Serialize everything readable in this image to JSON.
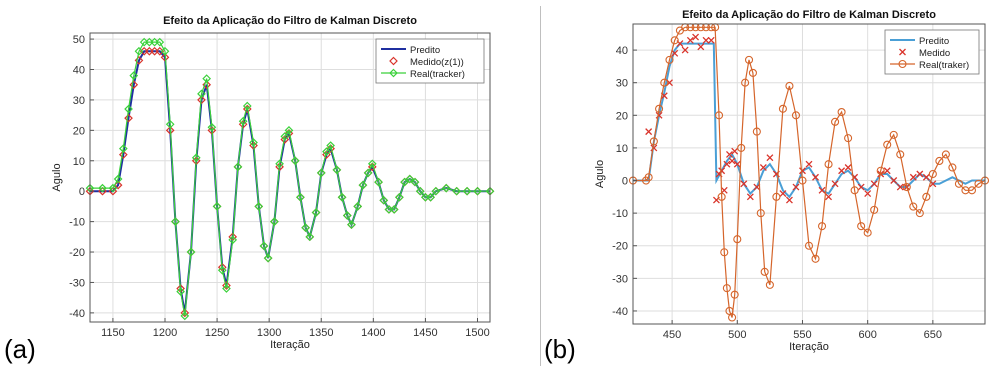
{
  "panels": [
    {
      "letter": "(a)",
      "chart_data": {
        "type": "line",
        "title": "Efeito da Aplicação do Filtro de Kalman Discreto",
        "xlabel": "Iteração",
        "ylabel": "Agulo",
        "xlim": [
          1128,
          1512
        ],
        "ylim": [
          -43,
          52
        ],
        "xticks": [
          1150,
          1200,
          1250,
          1300,
          1350,
          1400,
          1450,
          1500
        ],
        "yticks": [
          -40,
          -30,
          -20,
          -10,
          0,
          10,
          20,
          30,
          40,
          50
        ],
        "grid": true,
        "legend_position": "top-right",
        "series": [
          {
            "name": "Predito",
            "style": "line",
            "color": "#1f2fa0",
            "x": [
              1128,
              1140,
              1150,
              1155,
              1160,
              1165,
              1170,
              1175,
              1180,
              1185,
              1190,
              1195,
              1200,
              1205,
              1210,
              1215,
              1219,
              1225,
              1230,
              1235,
              1240,
              1245,
              1250,
              1255,
              1259,
              1265,
              1270,
              1275,
              1279,
              1285,
              1290,
              1295,
              1299,
              1305,
              1310,
              1315,
              1319,
              1325,
              1330,
              1335,
              1339,
              1345,
              1350,
              1355,
              1359,
              1365,
              1370,
              1375,
              1379,
              1385,
              1390,
              1395,
              1399,
              1405,
              1410,
              1415,
              1420,
              1425,
              1430,
              1435,
              1440,
              1445,
              1450,
              1455,
              1460,
              1470,
              1480,
              1490,
              1500,
              1512
            ],
            "y": [
              0,
              0,
              0,
              2,
              12,
              24,
              35,
              43,
              46,
              46,
              46,
              46,
              44,
              20,
              -10,
              -32,
              -40,
              -20,
              10,
              30,
              35,
              20,
              -5,
              -25,
              -31,
              -15,
              8,
              22,
              27,
              15,
              -5,
              -18,
              -22,
              -10,
              8,
              17,
              19,
              10,
              -2,
              -12,
              -15,
              -7,
              6,
              12,
              14,
              7,
              -2,
              -8,
              -11,
              -5,
              2,
              6,
              8,
              3,
              -3,
              -6,
              -6,
              -2,
              3,
              4,
              3,
              0,
              -2,
              -2,
              0,
              1,
              0,
              0,
              0,
              0
            ]
          },
          {
            "name": "Medido(z(1))",
            "style": "marker",
            "color": "#d9342b",
            "x": [
              1128,
              1140,
              1150,
              1155,
              1160,
              1165,
              1170,
              1175,
              1180,
              1185,
              1190,
              1195,
              1200,
              1205,
              1210,
              1215,
              1219,
              1225,
              1230,
              1235,
              1240,
              1245,
              1250,
              1255,
              1259,
              1265,
              1270,
              1275,
              1279,
              1285,
              1290,
              1295,
              1299,
              1305,
              1310,
              1315,
              1319,
              1325,
              1330,
              1335,
              1339,
              1345,
              1350,
              1355,
              1359,
              1365,
              1370,
              1375,
              1379,
              1385,
              1390,
              1395,
              1399,
              1405,
              1410,
              1415,
              1420,
              1425,
              1430,
              1435,
              1440,
              1445,
              1450,
              1455,
              1460,
              1470,
              1480,
              1490,
              1500,
              1512
            ],
            "y": [
              0,
              0,
              0,
              2,
              12,
              24,
              35,
              43,
              46,
              46,
              46,
              46,
              44,
              20,
              -10,
              -32,
              -40,
              -20,
              10,
              30,
              35,
              20,
              -5,
              -25,
              -31,
              -15,
              8,
              22,
              27,
              15,
              -5,
              -18,
              -22,
              -10,
              8,
              17,
              19,
              10,
              -2,
              -12,
              -15,
              -7,
              6,
              12,
              14,
              7,
              -2,
              -8,
              -11,
              -5,
              2,
              6,
              8,
              3,
              -3,
              -6,
              -6,
              -2,
              3,
              4,
              3,
              0,
              -2,
              -2,
              0,
              1,
              0,
              0,
              0,
              0
            ]
          },
          {
            "name": "Real(tracker)",
            "style": "line+marker",
            "color": "#3ad13a",
            "x": [
              1128,
              1140,
              1150,
              1155,
              1160,
              1165,
              1170,
              1175,
              1180,
              1185,
              1190,
              1195,
              1200,
              1205,
              1210,
              1215,
              1219,
              1225,
              1230,
              1235,
              1240,
              1245,
              1250,
              1255,
              1259,
              1265,
              1270,
              1275,
              1279,
              1285,
              1290,
              1295,
              1299,
              1305,
              1310,
              1315,
              1319,
              1325,
              1330,
              1335,
              1339,
              1345,
              1350,
              1355,
              1359,
              1365,
              1370,
              1375,
              1379,
              1385,
              1390,
              1395,
              1399,
              1405,
              1410,
              1415,
              1420,
              1425,
              1430,
              1435,
              1440,
              1445,
              1450,
              1455,
              1460,
              1470,
              1480,
              1490,
              1500,
              1512
            ],
            "y": [
              1,
              1,
              1,
              4,
              14,
              27,
              38,
              46,
              49,
              49,
              49,
              49,
              46,
              22,
              -10,
              -33,
              -41,
              -20,
              11,
              32,
              37,
              21,
              -5,
              -26,
              -32,
              -16,
              8,
              23,
              28,
              16,
              -5,
              -18,
              -22,
              -10,
              9,
              18,
              20,
              10,
              -2,
              -12,
              -15,
              -7,
              6,
              13,
              15,
              7,
              -2,
              -8,
              -11,
              -5,
              2,
              6,
              9,
              3,
              -3,
              -6,
              -6,
              -2,
              3,
              4,
              3,
              0,
              -2,
              -2,
              0,
              1,
              0,
              0,
              0,
              0
            ]
          }
        ]
      }
    },
    {
      "letter": "(b)",
      "chart_data": {
        "type": "line",
        "title": "Efeito da Aplicação do Filtro de Kalman Discreto",
        "xlabel": "Iteração",
        "ylabel": "Agulo",
        "xlim": [
          420,
          690
        ],
        "ylim": [
          -44,
          48
        ],
        "xticks": [
          450,
          500,
          550,
          600,
          650
        ],
        "yticks": [
          -40,
          -30,
          -20,
          -10,
          0,
          10,
          20,
          30,
          40
        ],
        "grid": true,
        "legend_position": "top-right",
        "series": [
          {
            "name": "Predito",
            "style": "line",
            "color": "#4a9fd6",
            "x": [
              420,
              430,
              432,
              436,
              440,
              444,
              448,
              452,
              456,
              460,
              464,
              468,
              472,
              476,
              480,
              482,
              484,
              488,
              492,
              496,
              500,
              505,
              510,
              515,
              520,
              525,
              530,
              535,
              540,
              545,
              550,
              555,
              560,
              565,
              570,
              575,
              580,
              585,
              590,
              595,
              600,
              605,
              610,
              615,
              620,
              625,
              630,
              635,
              640,
              645,
              650,
              655,
              660,
              665,
              670,
              675,
              680,
              685,
              690
            ],
            "y": [
              0,
              0,
              0,
              12,
              20,
              27,
              35,
              40,
              42,
              42,
              42,
              42,
              42,
              42,
              42,
              42,
              0,
              3,
              6,
              8,
              5,
              -1,
              -4,
              -2,
              3,
              5,
              2,
              -3,
              -5,
              -2,
              3,
              4,
              1,
              -3,
              -4,
              -1,
              2,
              3,
              1,
              -2,
              -3,
              -1,
              2,
              2,
              0,
              -2,
              -2,
              0,
              2,
              1,
              -1,
              -1,
              0,
              1,
              0,
              -1,
              0,
              0,
              0
            ]
          },
          {
            "name": "Medido",
            "style": "marker-x",
            "color": "#d9342b",
            "x": [
              432,
              436,
              440,
              444,
              448,
              452,
              456,
              460,
              464,
              468,
              472,
              476,
              480,
              484,
              486,
              488,
              490,
              492,
              494,
              496,
              498,
              500,
              505,
              510,
              515,
              520,
              525,
              530,
              535,
              540,
              545,
              550,
              555,
              560,
              565,
              570,
              575,
              580,
              585,
              590,
              595,
              600,
              605,
              610,
              615,
              620,
              625,
              630,
              635,
              640,
              645,
              650
            ],
            "y": [
              15,
              10,
              20,
              26,
              30,
              39,
              42,
              40,
              43,
              44,
              41,
              43,
              43,
              -6,
              2,
              3,
              -3,
              5,
              8,
              6,
              9,
              5,
              -1,
              -5,
              -2,
              4,
              7,
              2,
              -4,
              -6,
              -2,
              3,
              5,
              1,
              -3,
              -5,
              -1,
              3,
              4,
              1,
              -2,
              -4,
              -1,
              2,
              3,
              0,
              -2,
              -2,
              1,
              2,
              1,
              -1
            ]
          },
          {
            "name": "Real(traker)",
            "style": "line+marker-o",
            "color": "#d5652b",
            "x": [
              420,
              430,
              432,
              436,
              440,
              444,
              448,
              452,
              456,
              460,
              464,
              468,
              472,
              476,
              480,
              483,
              486,
              488,
              490,
              492,
              494,
              496,
              498,
              500,
              503,
              506,
              509,
              512,
              515,
              518,
              521,
              525,
              530,
              535,
              540,
              545,
              550,
              555,
              560,
              565,
              570,
              575,
              580,
              585,
              590,
              595,
              600,
              605,
              610,
              615,
              620,
              625,
              630,
              635,
              640,
              645,
              650,
              655,
              660,
              665,
              670,
              675,
              680,
              685,
              690
            ],
            "y": [
              0,
              0,
              1,
              12,
              22,
              30,
              37,
              43,
              46,
              47,
              47,
              47,
              47,
              47,
              47,
              47,
              20,
              -5,
              -22,
              -33,
              -40,
              -42,
              -35,
              -18,
              10,
              30,
              37,
              33,
              15,
              -10,
              -28,
              -32,
              -5,
              22,
              29,
              20,
              0,
              -20,
              -24,
              -14,
              5,
              18,
              21,
              13,
              -3,
              -14,
              -16,
              -9,
              3,
              11,
              14,
              8,
              -2,
              -8,
              -10,
              -5,
              2,
              6,
              8,
              4,
              -1,
              -3,
              -3,
              -1,
              0
            ]
          }
        ]
      }
    }
  ]
}
